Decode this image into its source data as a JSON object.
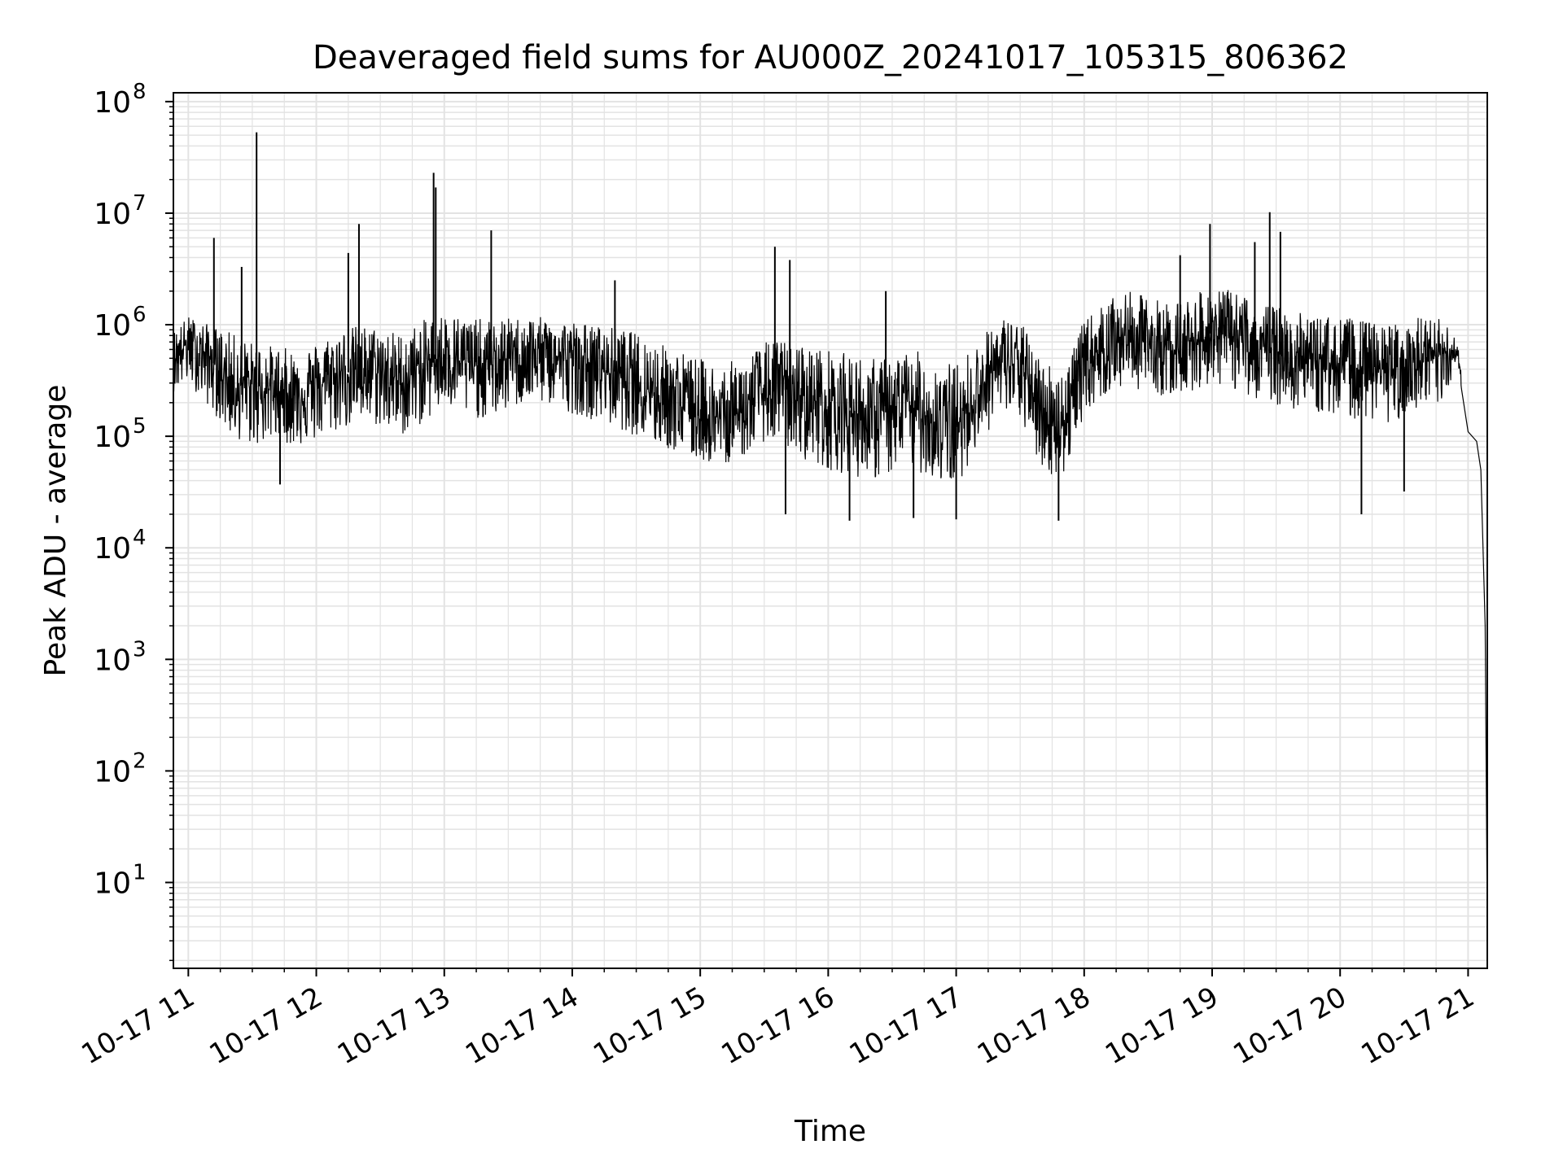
{
  "chart_data": {
    "type": "line",
    "title": "Deaveraged field sums for AU000Z_20241017_105315_806362",
    "xlabel": "Time",
    "ylabel": "Peak ADU - average",
    "yscale": "log",
    "ylim": [
      1.7,
      120000000
    ],
    "xlim": [
      "2024-10-17 10:53",
      "2024-10-17 21:09"
    ],
    "grid": true,
    "grid_minor": true,
    "line_color": "#000000",
    "grid_color": "#e3e3e3",
    "y_ticks": [
      {
        "value": 10,
        "base": "10",
        "exp": "1"
      },
      {
        "value": 100,
        "base": "10",
        "exp": "2"
      },
      {
        "value": 1000,
        "base": "10",
        "exp": "3"
      },
      {
        "value": 10000,
        "base": "10",
        "exp": "4"
      },
      {
        "value": 100000,
        "base": "10",
        "exp": "5"
      },
      {
        "value": 1000000,
        "base": "10",
        "exp": "6"
      },
      {
        "value": 10000000,
        "base": "10",
        "exp": "7"
      },
      {
        "value": 100000000,
        "base": "10",
        "exp": "8"
      }
    ],
    "x_ticks": [
      {
        "time": "2024-10-17 11:00",
        "label": "10-17 11"
      },
      {
        "time": "2024-10-17 12:00",
        "label": "10-17 12"
      },
      {
        "time": "2024-10-17 13:00",
        "label": "10-17 13"
      },
      {
        "time": "2024-10-17 14:00",
        "label": "10-17 14"
      },
      {
        "time": "2024-10-17 15:00",
        "label": "10-17 15"
      },
      {
        "time": "2024-10-17 16:00",
        "label": "10-17 16"
      },
      {
        "time": "2024-10-17 17:00",
        "label": "10-17 17"
      },
      {
        "time": "2024-10-17 18:00",
        "label": "10-17 18"
      },
      {
        "time": "2024-10-17 19:00",
        "label": "10-17 19"
      },
      {
        "time": "2024-10-17 20:00",
        "label": "10-17 20"
      },
      {
        "time": "2024-10-17 21:00",
        "label": "10-17 21"
      }
    ],
    "series": [
      {
        "x": [
          "2024-10-17 10:53",
          "2024-10-17 11:00",
          "2024-10-17 11:10",
          "2024-10-17 11:20",
          "2024-10-17 11:30",
          "2024-10-17 11:40",
          "2024-10-17 11:50",
          "2024-10-17 12:00",
          "2024-10-17 12:10",
          "2024-10-17 12:20",
          "2024-10-17 12:30",
          "2024-10-17 12:40",
          "2024-10-17 12:50",
          "2024-10-17 13:00",
          "2024-10-17 13:10",
          "2024-10-17 13:20",
          "2024-10-17 13:30",
          "2024-10-17 13:40",
          "2024-10-17 13:50",
          "2024-10-17 14:00",
          "2024-10-17 14:10",
          "2024-10-17 14:20",
          "2024-10-17 14:30",
          "2024-10-17 14:40",
          "2024-10-17 14:50",
          "2024-10-17 15:00",
          "2024-10-17 15:10",
          "2024-10-17 15:20",
          "2024-10-17 15:30",
          "2024-10-17 15:40",
          "2024-10-17 15:50",
          "2024-10-17 16:00",
          "2024-10-17 16:10",
          "2024-10-17 16:20",
          "2024-10-17 16:30",
          "2024-10-17 16:40",
          "2024-10-17 16:50",
          "2024-10-17 17:00",
          "2024-10-17 17:10",
          "2024-10-17 17:20",
          "2024-10-17 17:30",
          "2024-10-17 17:40",
          "2024-10-17 17:50",
          "2024-10-17 18:00",
          "2024-10-17 18:10",
          "2024-10-17 18:20",
          "2024-10-17 18:30",
          "2024-10-17 18:40",
          "2024-10-17 18:50",
          "2024-10-17 19:00",
          "2024-10-17 19:10",
          "2024-10-17 19:20",
          "2024-10-17 19:30",
          "2024-10-17 19:40",
          "2024-10-17 19:50",
          "2024-10-17 20:00",
          "2024-10-17 20:10",
          "2024-10-17 20:20",
          "2024-10-17 20:30",
          "2024-10-17 20:40",
          "2024-10-17 20:50",
          "2024-10-17 20:55",
          "2024-10-17 21:00",
          "2024-10-17 21:04",
          "2024-10-17 21:06",
          "2024-10-17 21:08",
          "2024-10-17 21:09"
        ],
        "y": [
          500000,
          700000,
          500000,
          300000,
          280000,
          260000,
          240000,
          280000,
          350000,
          400000,
          380000,
          300000,
          420000,
          550000,
          450000,
          420000,
          500000,
          550000,
          520000,
          480000,
          420000,
          380000,
          320000,
          250000,
          200000,
          150000,
          140000,
          170000,
          250000,
          260000,
          220000,
          200000,
          170000,
          150000,
          170000,
          180000,
          140000,
          120000,
          250000,
          450000,
          420000,
          170000,
          130000,
          450000,
          650000,
          800000,
          700000,
          600000,
          700000,
          850000,
          750000,
          650000,
          550000,
          500000,
          480000,
          450000,
          400000,
          380000,
          420000,
          450000,
          550000,
          600000,
          110000,
          90000,
          50000,
          2000,
          4
        ],
        "envelope_high": [
          900000,
          1200000,
          1000000,
          850000,
          700000,
          650000,
          600000,
          700000,
          900000,
          1000000,
          950000,
          850000,
          1100000,
          1300000,
          1200000,
          1100000,
          1150000,
          1200000,
          1150000,
          1100000,
          1000000,
          950000,
          850000,
          700000,
          600000,
          500000,
          450000,
          500000,
          700000,
          750000,
          650000,
          600000,
          550000,
          500000,
          550000,
          600000,
          500000,
          450000,
          700000,
          1200000,
          1100000,
          500000,
          400000,
          1100000,
          1600000,
          2000000,
          1800000,
          1600000,
          1800000,
          2200000,
          2000000,
          1700000,
          1500000,
          1300000,
          1200000,
          1200000,
          1100000,
          1000000,
          1100000,
          1200000,
          1100000,
          700000,
          130000,
          110000,
          70000,
          3000,
          5
        ],
        "envelope_low": [
          250000,
          300000,
          180000,
          100000,
          80000,
          90000,
          80000,
          90000,
          110000,
          130000,
          120000,
          100000,
          130000,
          180000,
          150000,
          140000,
          170000,
          200000,
          190000,
          160000,
          140000,
          120000,
          100000,
          80000,
          70000,
          60000,
          55000,
          65000,
          90000,
          80000,
          60000,
          50000,
          45000,
          40000,
          45000,
          50000,
          40000,
          35000,
          80000,
          150000,
          140000,
          50000,
          40000,
          160000,
          230000,
          280000,
          250000,
          220000,
          250000,
          300000,
          260000,
          220000,
          190000,
          170000,
          160000,
          150000,
          140000,
          130000,
          140000,
          150000,
          180000,
          500000,
          90000,
          70000,
          40000,
          1500,
          3
        ],
        "spikes": [
          {
            "t": "2024-10-17 11:12",
            "y": 6000000
          },
          {
            "t": "2024-10-17 11:25",
            "y": 3300000
          },
          {
            "t": "2024-10-17 11:32",
            "y": 53000000
          },
          {
            "t": "2024-10-17 12:15",
            "y": 4400000
          },
          {
            "t": "2024-10-17 12:20",
            "y": 8000000
          },
          {
            "t": "2024-10-17 12:55",
            "y": 23000000
          },
          {
            "t": "2024-10-17 12:56",
            "y": 17000000
          },
          {
            "t": "2024-10-17 13:22",
            "y": 7000000
          },
          {
            "t": "2024-10-17 14:20",
            "y": 2500000
          },
          {
            "t": "2024-10-17 15:35",
            "y": 5000000
          },
          {
            "t": "2024-10-17 15:42",
            "y": 3800000
          },
          {
            "t": "2024-10-17 16:27",
            "y": 2000000
          },
          {
            "t": "2024-10-17 18:45",
            "y": 4200000
          },
          {
            "t": "2024-10-17 18:59",
            "y": 8000000
          },
          {
            "t": "2024-10-17 19:20",
            "y": 5500000
          },
          {
            "t": "2024-10-17 19:27",
            "y": 10200000
          },
          {
            "t": "2024-10-17 19:32",
            "y": 6800000
          },
          {
            "t": "2024-10-17 11:43",
            "y": 37000
          },
          {
            "t": "2024-10-17 15:40",
            "y": 20000
          },
          {
            "t": "2024-10-17 16:10",
            "y": 17500
          },
          {
            "t": "2024-10-17 16:40",
            "y": 18500
          },
          {
            "t": "2024-10-17 17:00",
            "y": 18000
          },
          {
            "t": "2024-10-17 17:48",
            "y": 17500
          },
          {
            "t": "2024-10-17 20:10",
            "y": 20000
          },
          {
            "t": "2024-10-17 20:30",
            "y": 32000
          }
        ]
      }
    ]
  }
}
